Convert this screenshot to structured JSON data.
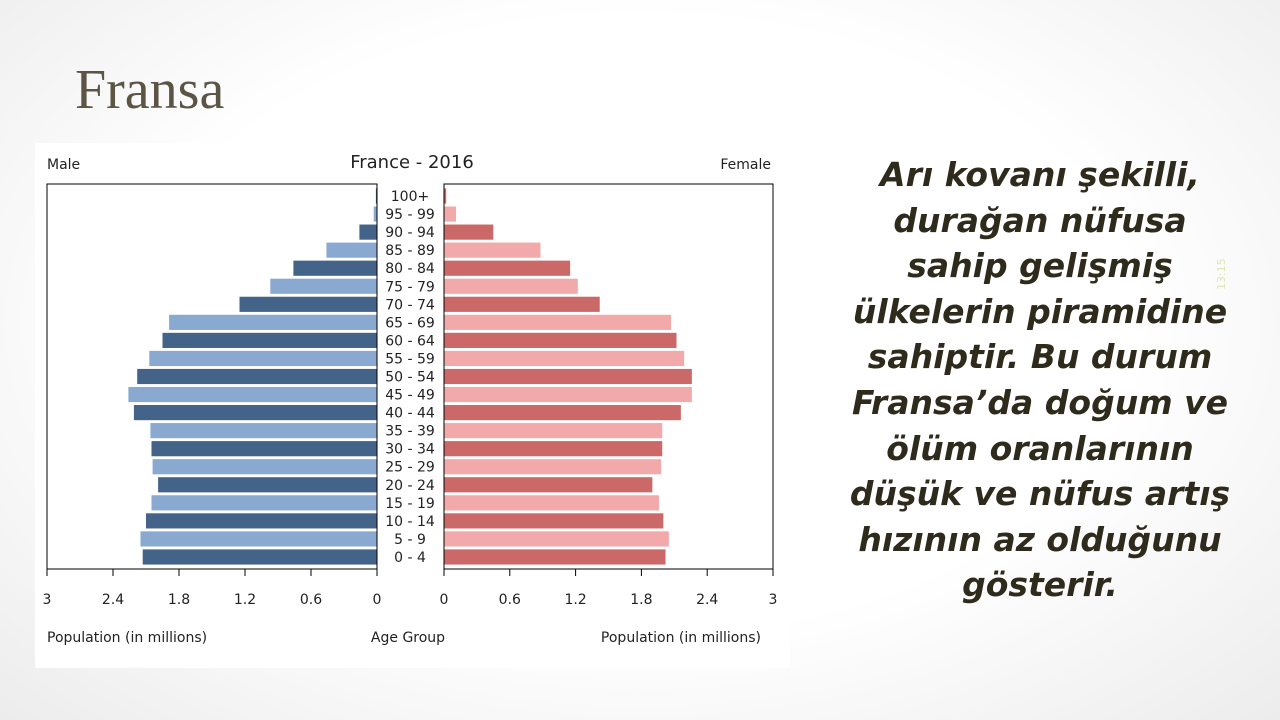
{
  "slide": {
    "title": "Fransa",
    "body_text": "Arı kovanı şekilli, durağan nüfusa sahip gelişmiş ülkelerin piramidine sahiptir. Bu durum Fransa’da doğum ve ölüm oranlarının düşük ve nüfus artış hızının az olduğunu gösterir.",
    "slide_time": "13:15"
  },
  "chart_data": {
    "type": "bar",
    "title": "France - 2016",
    "left_label": "Male",
    "right_label": "Female",
    "xlabel_left": "Population (in millions)",
    "xlabel_center": "Age Group",
    "xlabel_right": "Population (in millions)",
    "xlim": [
      0,
      3
    ],
    "ticks": [
      "3",
      "2.4",
      "1.8",
      "1.2",
      "0.6",
      "0"
    ],
    "tick_values": [
      3,
      2.4,
      1.8,
      1.2,
      0.6,
      0
    ],
    "categories": [
      "100+",
      "95 - 99",
      "90 - 94",
      "85 - 89",
      "80 - 84",
      "75 - 79",
      "70 - 74",
      "65 - 69",
      "60 - 64",
      "55 - 59",
      "50 - 54",
      "45 - 49",
      "40 - 44",
      "35 - 39",
      "30 - 34",
      "25 - 29",
      "20 - 24",
      "15 - 19",
      "10 - 14",
      "5 - 9",
      "0 - 4"
    ],
    "series": [
      {
        "name": "Male",
        "values": [
          0.01,
          0.03,
          0.16,
          0.46,
          0.76,
          0.97,
          1.25,
          1.89,
          1.95,
          2.07,
          2.18,
          2.26,
          2.21,
          2.06,
          2.05,
          2.04,
          1.99,
          2.05,
          2.1,
          2.15,
          2.13
        ]
      },
      {
        "name": "Female",
        "values": [
          0.02,
          0.11,
          0.45,
          0.88,
          1.15,
          1.22,
          1.42,
          2.07,
          2.12,
          2.19,
          2.26,
          2.26,
          2.16,
          1.99,
          1.99,
          1.98,
          1.9,
          1.96,
          2.0,
          2.05,
          2.02
        ]
      }
    ],
    "colors": {
      "male_dark": "#436388",
      "male_light": "#8aa9d0",
      "female_dark": "#cb6868",
      "female_light": "#f2a9a9",
      "axis": "#000000",
      "text": "#222222"
    }
  }
}
